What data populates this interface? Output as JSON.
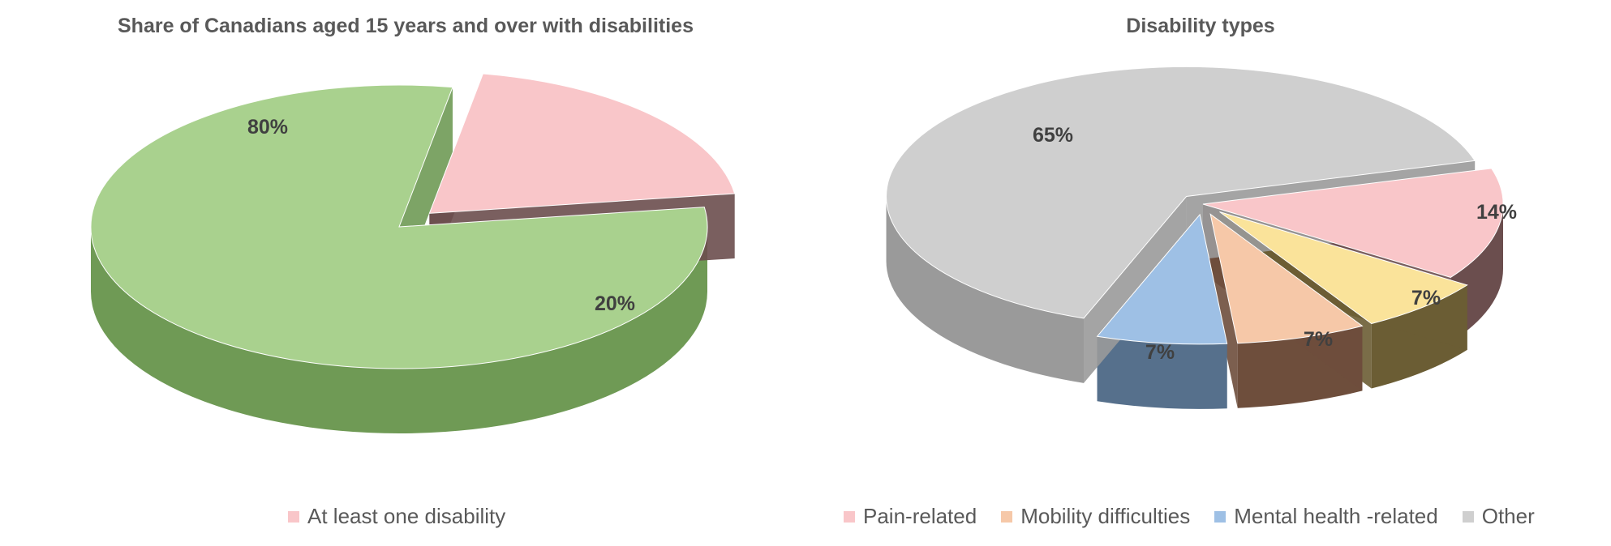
{
  "chart_data": [
    {
      "type": "pie",
      "title": "Share of Canadians aged 15 years and over with disabilities",
      "slices": [
        {
          "label": "",
          "value": 80,
          "text": "80%",
          "color": "#a9d18e",
          "side": "#6f9a55",
          "exploded": false
        },
        {
          "label": "At least one disability",
          "value": 20,
          "text": "20%",
          "color": "#f9c6c9",
          "side": "#6b4e4e",
          "exploded": true
        }
      ],
      "legend": [
        "At least one disability"
      ]
    },
    {
      "type": "pie",
      "title": "Disability types",
      "slices": [
        {
          "label": "Pain-related",
          "value": 14,
          "text": "14%",
          "color": "#f9c6c9",
          "side": "#6b4e4e"
        },
        {
          "label": "",
          "value": 7,
          "text": "7%",
          "color": "#fae39a",
          "side": "#6b5d34"
        },
        {
          "label": "Mobility difficulties",
          "value": 7,
          "text": "7%",
          "color": "#f6c8a8",
          "side": "#6e4e3c"
        },
        {
          "label": "Mental health -related",
          "value": 7,
          "text": "7%",
          "color": "#9ec0e5",
          "side": "#56708c"
        },
        {
          "label": "Other",
          "value": 65,
          "text": "65%",
          "color": "#cfcfcf",
          "side": "#9a9a9a"
        }
      ],
      "legend": [
        "Pain-related",
        "Mobility difficulties",
        "Mental health -related",
        "Other"
      ]
    }
  ],
  "legend_colors": {
    "At least one disability": "#f9c6c9",
    "Pain-related": "#f9c6c9",
    "Mobility difficulties": "#f6c8a8",
    "Mental health -related": "#9ec0e5",
    "Other": "#cfcfcf"
  }
}
